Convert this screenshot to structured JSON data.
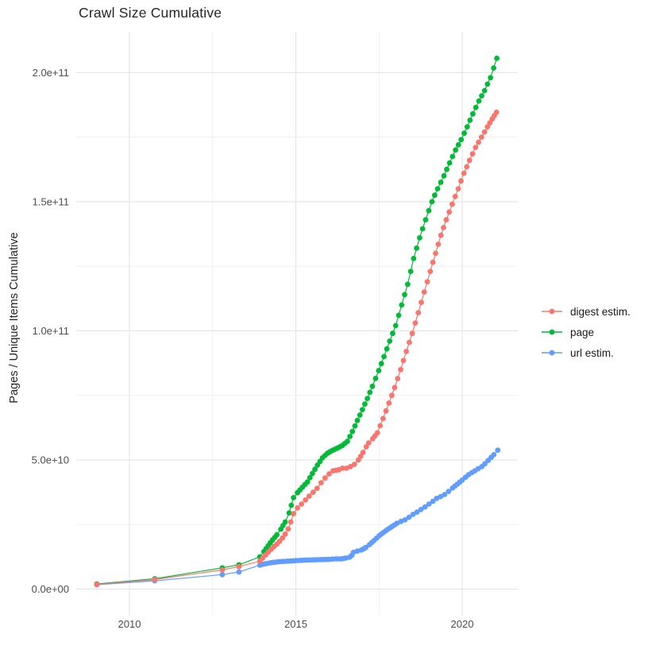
{
  "page": {
    "background": "#ffffff"
  },
  "chart_data": {
    "type": "scatter",
    "title": "Crawl Size Cumulative",
    "ylabel": "Pages / Unique Items Cumulative",
    "xlabel": "",
    "legend_position": "right-center",
    "x_tick_labels": [
      "2010",
      "2015",
      "2020"
    ],
    "y_tick_labels": [
      "0.0e+00",
      "5.0e+10",
      "1.0e+11",
      "1.5e+11",
      "2.0e+11"
    ],
    "grid": {
      "major_x_years": [
        2010,
        2015,
        2020
      ],
      "minor_x_years": [
        2012.5,
        2017.5
      ],
      "major_y_e9": [
        0,
        50,
        100,
        150,
        200
      ],
      "minor_y_e9": [
        25,
        75,
        125,
        175
      ],
      "major_color": "#e5e5e5",
      "minor_color": "#efefef"
    },
    "xlim_years": [
      2008.4,
      2021.7
    ],
    "ylim": [
      -10000000000,
      216000000000
    ],
    "units": "point values are [year, cumulative count in billions (1e9)]",
    "dense_from_year": 2013.9,
    "dense_step_years": 0.085,
    "series": [
      {
        "name": "digest estim.",
        "color": "#F8766D",
        "points_year_value_e9": [
          [
            2009.02,
            1.8
          ],
          [
            2010.76,
            3.7
          ],
          [
            2012.79,
            7.4
          ],
          [
            2013.29,
            8.7
          ],
          [
            2013.92,
            10.8
          ],
          [
            2014.0,
            12.0
          ],
          [
            2014.09,
            13.2
          ],
          [
            2014.17,
            14.3
          ],
          [
            2014.26,
            15.4
          ],
          [
            2014.34,
            16.4
          ],
          [
            2014.43,
            17.4
          ],
          [
            2014.51,
            18.5
          ],
          [
            2014.6,
            19.8
          ],
          [
            2014.68,
            21.3
          ],
          [
            2014.77,
            23.3
          ],
          [
            2014.85,
            26.0
          ],
          [
            2014.93,
            29.2
          ],
          [
            2015.05,
            31.4
          ],
          [
            2015.17,
            32.9
          ],
          [
            2015.29,
            34.5
          ],
          [
            2015.4,
            36.0
          ],
          [
            2015.52,
            37.5
          ],
          [
            2015.64,
            39.0
          ],
          [
            2015.76,
            41.2
          ],
          [
            2015.88,
            43.0
          ],
          [
            2016.0,
            44.6
          ],
          [
            2016.12,
            45.8
          ],
          [
            2016.29,
            46.2
          ],
          [
            2016.4,
            46.8
          ],
          [
            2016.52,
            46.8
          ],
          [
            2016.64,
            47.4
          ],
          [
            2016.76,
            48.3
          ],
          [
            2016.88,
            50.0
          ],
          [
            2016.95,
            51.4
          ],
          [
            2017.02,
            52.9
          ],
          [
            2017.12,
            55.1
          ],
          [
            2017.19,
            56.6
          ],
          [
            2017.31,
            58.2
          ],
          [
            2017.45,
            60.5
          ],
          [
            2017.62,
            66
          ],
          [
            2017.8,
            72
          ],
          [
            2017.97,
            78
          ],
          [
            2018.15,
            85
          ],
          [
            2018.32,
            92
          ],
          [
            2018.5,
            99
          ],
          [
            2018.68,
            107
          ],
          [
            2018.86,
            115
          ],
          [
            2019.04,
            123
          ],
          [
            2019.2,
            130
          ],
          [
            2019.36,
            137
          ],
          [
            2019.52,
            143
          ],
          [
            2019.7,
            149
          ],
          [
            2019.88,
            155
          ],
          [
            2020.05,
            161
          ],
          [
            2020.22,
            166
          ],
          [
            2020.4,
            171
          ],
          [
            2020.58,
            175
          ],
          [
            2020.76,
            179
          ],
          [
            2020.9,
            182
          ],
          [
            2021.03,
            184.6
          ]
        ]
      },
      {
        "name": "page",
        "color": "#00BA38",
        "points_year_value_e9": [
          [
            2009.02,
            2.0
          ],
          [
            2010.76,
            4.0
          ],
          [
            2012.79,
            8.2
          ],
          [
            2013.29,
            9.4
          ],
          [
            2013.92,
            12.5
          ],
          [
            2014.04,
            14.5
          ],
          [
            2014.17,
            16.8
          ],
          [
            2014.3,
            19.0
          ],
          [
            2014.43,
            21.0
          ],
          [
            2014.55,
            23.2
          ],
          [
            2014.68,
            26.0
          ],
          [
            2014.8,
            29.5
          ],
          [
            2014.93,
            35.4
          ],
          [
            2015.05,
            37.3
          ],
          [
            2015.2,
            39.5
          ],
          [
            2015.35,
            41.5
          ],
          [
            2015.5,
            44.8
          ],
          [
            2015.65,
            48.0
          ],
          [
            2015.8,
            50.8
          ],
          [
            2015.95,
            52.6
          ],
          [
            2016.1,
            53.7
          ],
          [
            2016.25,
            54.6
          ],
          [
            2016.4,
            55.6
          ],
          [
            2016.55,
            57.2
          ],
          [
            2016.7,
            61.0
          ],
          [
            2016.85,
            65.3
          ],
          [
            2017.0,
            69.5
          ],
          [
            2017.15,
            73.8
          ],
          [
            2017.3,
            78.5
          ],
          [
            2017.49,
            84.6
          ],
          [
            2017.65,
            90
          ],
          [
            2017.82,
            96
          ],
          [
            2018.0,
            102
          ],
          [
            2018.18,
            110
          ],
          [
            2018.36,
            118
          ],
          [
            2018.54,
            128
          ],
          [
            2018.72,
            136
          ],
          [
            2018.9,
            143
          ],
          [
            2019.09,
            150
          ],
          [
            2019.26,
            155
          ],
          [
            2019.45,
            160
          ],
          [
            2019.62,
            165
          ],
          [
            2019.8,
            170
          ],
          [
            2019.97,
            174
          ],
          [
            2020.15,
            179
          ],
          [
            2020.32,
            184
          ],
          [
            2020.5,
            189
          ],
          [
            2020.67,
            193
          ],
          [
            2020.85,
            198
          ],
          [
            2021.04,
            205.5
          ]
        ]
      },
      {
        "name": "url estim.",
        "color": "#619CFF",
        "points_year_value_e9": [
          [
            2009.02,
            1.7
          ],
          [
            2010.76,
            3.2
          ],
          [
            2012.79,
            5.6
          ],
          [
            2013.29,
            6.6
          ],
          [
            2013.92,
            9.3
          ],
          [
            2014.0,
            9.6
          ],
          [
            2014.25,
            10.2
          ],
          [
            2014.5,
            10.6
          ],
          [
            2014.75,
            10.8
          ],
          [
            2015.0,
            11.0
          ],
          [
            2015.25,
            11.2
          ],
          [
            2015.5,
            11.3
          ],
          [
            2015.75,
            11.4
          ],
          [
            2016.0,
            11.5
          ],
          [
            2016.2,
            11.7
          ],
          [
            2016.37,
            11.7
          ],
          [
            2016.5,
            12.0
          ],
          [
            2016.61,
            12.3
          ],
          [
            2016.68,
            13.0
          ],
          [
            2016.73,
            14.2
          ],
          [
            2016.85,
            14.7
          ],
          [
            2016.97,
            15.1
          ],
          [
            2017.1,
            16.1
          ],
          [
            2017.21,
            17.2
          ],
          [
            2017.35,
            18.8
          ],
          [
            2017.5,
            20.6
          ],
          [
            2017.63,
            21.9
          ],
          [
            2017.76,
            23.1
          ],
          [
            2017.9,
            24.3
          ],
          [
            2018.04,
            25.5
          ],
          [
            2018.16,
            26.2
          ],
          [
            2018.28,
            26.8
          ],
          [
            2018.4,
            27.8
          ],
          [
            2018.52,
            28.9
          ],
          [
            2018.64,
            29.8
          ],
          [
            2018.76,
            30.8
          ],
          [
            2018.88,
            31.8
          ],
          [
            2019.0,
            32.9
          ],
          [
            2019.12,
            34.0
          ],
          [
            2019.23,
            35.1
          ],
          [
            2019.35,
            35.8
          ],
          [
            2019.47,
            36.6
          ],
          [
            2019.59,
            37.8
          ],
          [
            2019.71,
            39.1
          ],
          [
            2019.85,
            40.6
          ],
          [
            2020.0,
            42.2
          ],
          [
            2020.1,
            43.3
          ],
          [
            2020.19,
            44.3
          ],
          [
            2020.29,
            45.1
          ],
          [
            2020.38,
            45.8
          ],
          [
            2020.48,
            46.6
          ],
          [
            2020.59,
            47.4
          ],
          [
            2020.68,
            48.5
          ],
          [
            2020.78,
            49.8
          ],
          [
            2020.87,
            51.0
          ],
          [
            2020.95,
            52.0
          ],
          [
            2021.07,
            53.8
          ]
        ]
      }
    ]
  }
}
